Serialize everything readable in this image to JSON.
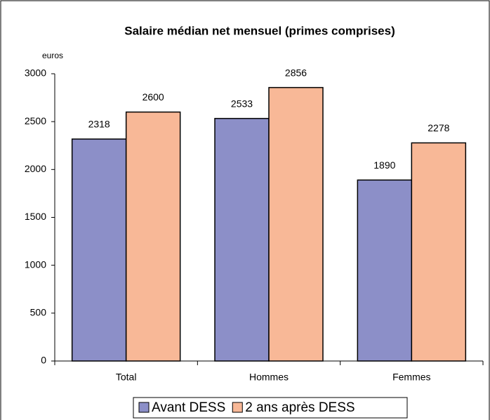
{
  "chart_data": {
    "type": "bar",
    "title": "Salaire médian net mensuel (primes comprises)",
    "y_axis_label": "euros",
    "categories": [
      "Total",
      "Hommes",
      "Femmes"
    ],
    "series": [
      {
        "name": "Avant DESS",
        "color": "#8c8fc8",
        "values": [
          2318,
          2533,
          1890
        ]
      },
      {
        "name": "2 ans après DESS",
        "color": "#f8b897",
        "values": [
          2600,
          2856,
          2278
        ]
      }
    ],
    "ylim": [
      0,
      3000
    ],
    "yticks": [
      0,
      500,
      1000,
      1500,
      2000,
      2500,
      3000
    ],
    "legend": "bottom"
  }
}
